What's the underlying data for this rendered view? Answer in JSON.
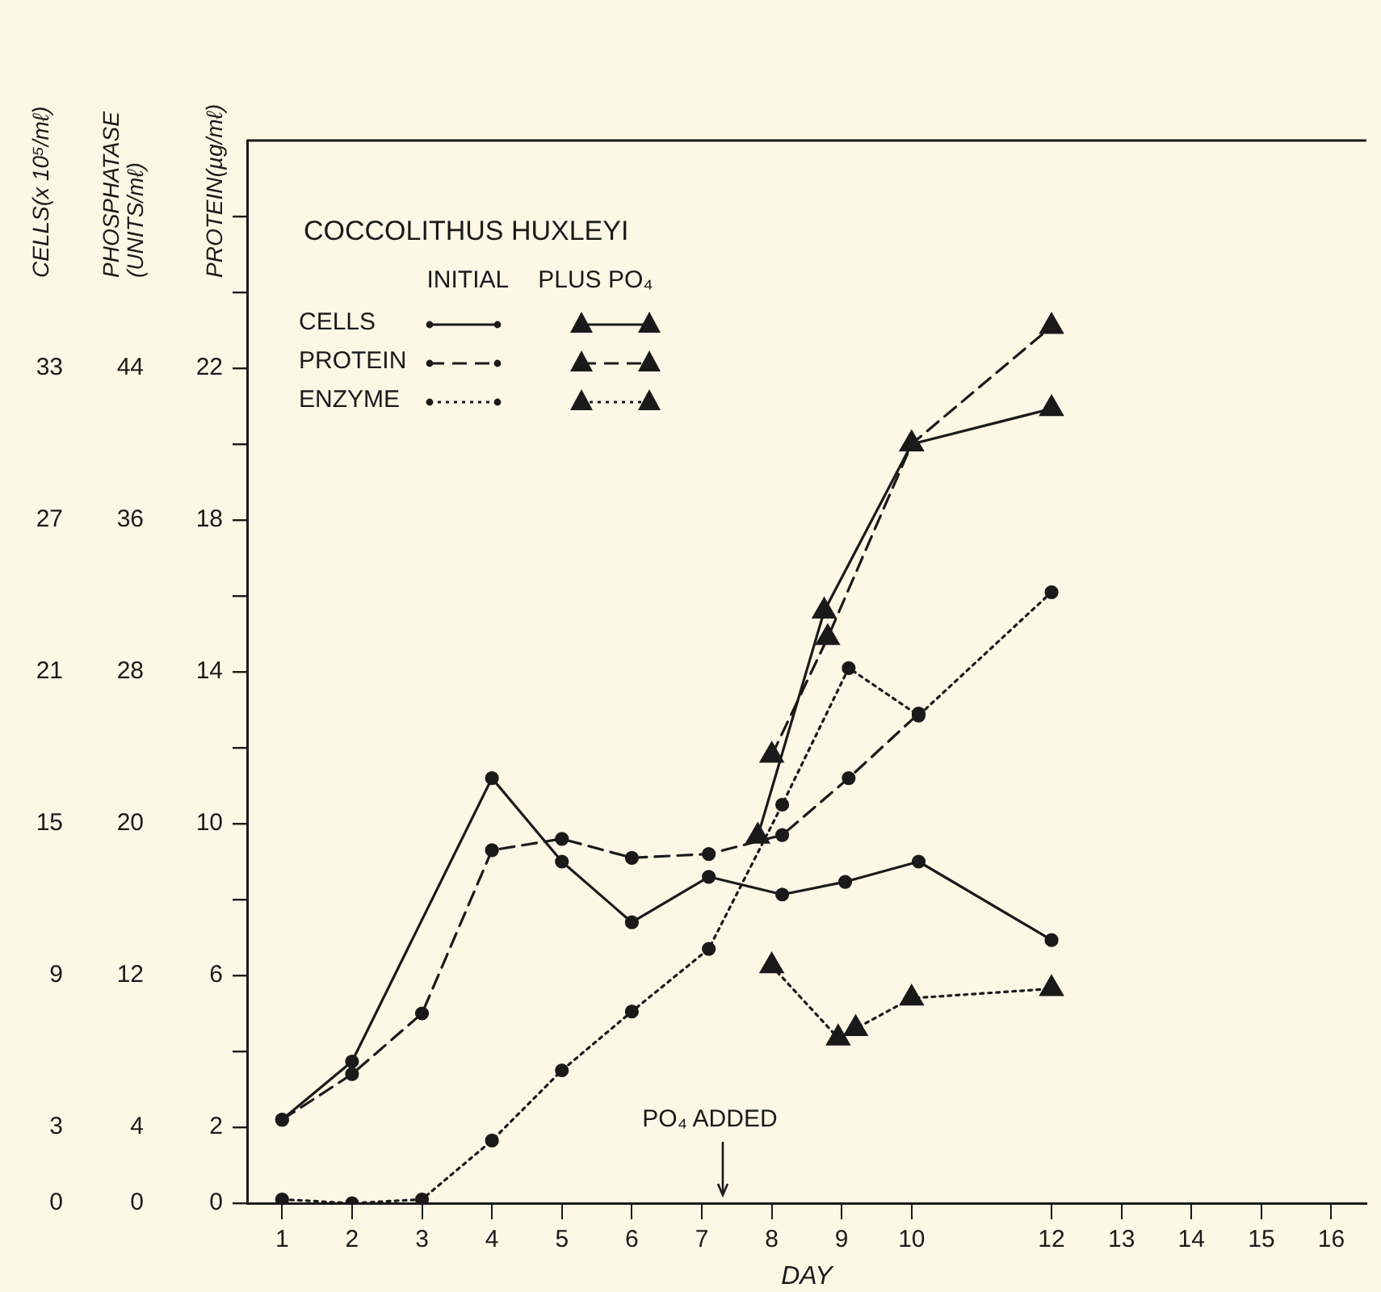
{
  "chart_data": {
    "type": "line",
    "title": "COCCOLITHUS HUXLEYI",
    "xlabel": "DAY",
    "ylabel": "PROTEIN(µg/mℓ)",
    "y2label": "PHOSPHATASE (UNITS/mℓ)",
    "y3label": "CELLS(x 10⁵/mℓ)",
    "xlim": [
      0.5,
      16.5
    ],
    "xticks": [
      1,
      2,
      3,
      4,
      5,
      6,
      7,
      8,
      9,
      10,
      12,
      13,
      14,
      15,
      16
    ],
    "ylim": [
      0,
      28
    ],
    "yticks": [
      0,
      2,
      {
        "value": 4,
        "label": null
      },
      6,
      {
        "value": 8,
        "label": null
      },
      10,
      {
        "value": 12,
        "label": null
      },
      14,
      {
        "value": 16,
        "label": null
      },
      18,
      {
        "value": 20,
        "label": null
      },
      22,
      {
        "value": 24,
        "label": null
      },
      {
        "value": 26,
        "label": null
      }
    ],
    "y2lim": [
      0,
      56
    ],
    "y2ticks": [
      0,
      4,
      12,
      20,
      28,
      36,
      44
    ],
    "y3lim": [
      0,
      42
    ],
    "y3ticks": [
      0,
      3,
      9,
      15,
      21,
      27,
      33
    ],
    "legend": "top left",
    "series": [
      {
        "name": "CELLS",
        "color": "#1a1a1a",
        "axis": "y3",
        "line_style": "solid",
        "marker": "circle",
        "x": [
          1,
          2,
          4,
          5,
          6,
          7.1,
          8.15,
          9.05,
          10.1,
          12
        ],
        "values": [
          3.3,
          5.6,
          16.8,
          13.5,
          11.1,
          12.9,
          12.2,
          12.7,
          13.5,
          10.4
        ]
      },
      {
        "name": "PROTEIN",
        "color": "#1a1a1a",
        "line_style": "dashed",
        "marker": "circle",
        "x": [
          1,
          2,
          3,
          4,
          5,
          6,
          7.1,
          8.15,
          9.1,
          10.1
        ],
        "values": [
          2.2,
          3.4,
          5.0,
          9.3,
          9.6,
          9.1,
          9.2,
          9.7,
          11.2,
          12.9
        ]
      },
      {
        "name": "ENZYME",
        "color": "#1a1a1a",
        "axis": "y2",
        "line_style": "dotted",
        "marker": "circle",
        "x": [
          1,
          2,
          3,
          4,
          5,
          6,
          7.1,
          8.15,
          9.1,
          10.1,
          12
        ],
        "values": [
          0.2,
          0,
          0.2,
          3.3,
          7.0,
          10.1,
          13.4,
          21,
          28.2,
          25.7,
          32.2
        ]
      },
      {
        "color": "#1a1a1a",
        "axis": "y3",
        "line_style": "solid",
        "marker": "triangle",
        "x": [
          7.8,
          8.75,
          10,
          12
        ],
        "values": [
          14.5,
          23.4,
          30,
          31.4
        ]
      },
      {
        "color": "#1a1a1a",
        "line_style": "dashed",
        "marker": "triangle",
        "x": [
          8,
          8.8,
          10,
          12
        ],
        "values": [
          11.8,
          14.9,
          20,
          23.1
        ]
      },
      {
        "color": "#1a1a1a",
        "axis": "y2",
        "line_style": "dotted",
        "marker": "triangle",
        "x": [
          8,
          8.95,
          9.2,
          10,
          12
        ],
        "values": [
          12.5,
          8.7,
          9.2,
          10.8,
          11.3
        ]
      }
    ],
    "annotations": [
      "INITIAL",
      "PLUS PO₄",
      "PO₄ ADDED"
    ]
  }
}
